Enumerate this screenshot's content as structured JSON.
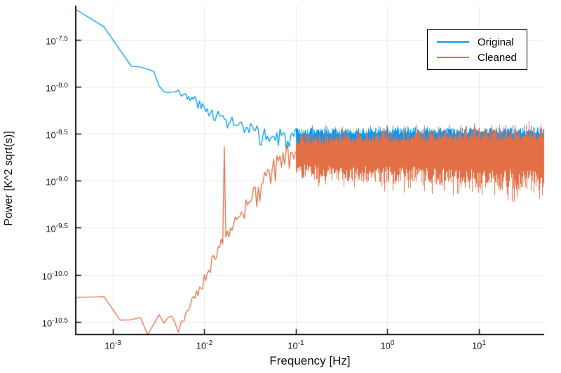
{
  "chart_data": {
    "type": "line",
    "title": "",
    "xlabel": "Frequency [Hz]",
    "ylabel": "Power [K^2 sqrt(s)]",
    "x_scale": "log10",
    "y_scale": "log10",
    "xlim_log10": [
      -3.406,
      1.713
    ],
    "ylim_log10": [
      -10.637,
      -7.135
    ],
    "grid": true,
    "x_ticks": [
      {
        "log10": -3,
        "base": "10",
        "exp": "-3"
      },
      {
        "log10": -2,
        "base": "10",
        "exp": "-2"
      },
      {
        "log10": -1,
        "base": "10",
        "exp": "-1"
      },
      {
        "log10": 0,
        "base": "10",
        "exp": "0"
      },
      {
        "log10": 1,
        "base": "10",
        "exp": "1"
      }
    ],
    "y_ticks": [
      {
        "log10": -7.5,
        "base": "10",
        "exp": "-7.5"
      },
      {
        "log10": -8.0,
        "base": "10",
        "exp": "-8.0"
      },
      {
        "log10": -8.5,
        "base": "10",
        "exp": "-8.5"
      },
      {
        "log10": -9.0,
        "base": "10",
        "exp": "-9.0"
      },
      {
        "log10": -9.5,
        "base": "10",
        "exp": "-9.5"
      },
      {
        "log10": -10.0,
        "base": "10",
        "exp": "-10.0"
      },
      {
        "log10": -10.5,
        "base": "10",
        "exp": "-10.5"
      }
    ],
    "colors": {
      "grid": "rgba(0,0,0,0.08)",
      "axis": "#111111",
      "tick_text": "#1a1a1a",
      "legend_border": "#000000",
      "background": "#ffffff"
    },
    "sampling": {
      "f_start": 0.0004,
      "f_step": 0.0004,
      "linear_until": 0.006,
      "poly_step": 0.0169,
      "poly_until_log10": -1.0
    },
    "legend": {
      "position": "top-right",
      "entries": [
        "Original",
        "Cleaned"
      ]
    },
    "series": [
      {
        "name": "Original",
        "color": "#009AF9",
        "seed": 3,
        "trend": [
          [
            -3.4,
            -7.18
          ],
          [
            -3.1,
            -7.35
          ],
          [
            -2.9,
            -7.64
          ],
          [
            -2.85,
            -7.75
          ],
          [
            -2.7,
            -7.8
          ],
          [
            -2.56,
            -7.82
          ],
          [
            -2.48,
            -8.0
          ],
          [
            -2.4,
            -8.07
          ],
          [
            -2.33,
            -8.0
          ],
          [
            -2.25,
            -8.1
          ],
          [
            -2.1,
            -8.14
          ],
          [
            -2.0,
            -8.25
          ],
          [
            -1.9,
            -8.28
          ],
          [
            -1.8,
            -8.35
          ],
          [
            -1.7,
            -8.38
          ],
          [
            -1.55,
            -8.47
          ],
          [
            -1.4,
            -8.52
          ],
          [
            -1.2,
            -8.55
          ],
          [
            -1.0,
            -8.56
          ],
          [
            1.72,
            -8.56
          ]
        ],
        "noise": [
          [
            -3.4,
            0.004
          ],
          [
            -2.9,
            0.01
          ],
          [
            -2.55,
            0.03
          ],
          [
            -2.3,
            0.05
          ],
          [
            -2.0,
            0.06
          ],
          [
            -1.7,
            0.09
          ],
          [
            -1.35,
            0.11
          ],
          [
            -1.0,
            0.12
          ]
        ],
        "env_hi": [
          [
            -1.0,
            0.12
          ],
          [
            1.72,
            0.13
          ]
        ],
        "env_lo": [
          [
            -1.0,
            0.14
          ],
          [
            1.72,
            0.16
          ]
        ]
      },
      {
        "name": "Cleaned",
        "color": "#E36F47",
        "seed": 9,
        "trend": [
          [
            -3.4,
            -10.24
          ],
          [
            -3.1,
            -10.24
          ],
          [
            -2.92,
            -10.47
          ],
          [
            -2.85,
            -10.55
          ],
          [
            -2.72,
            -10.42
          ],
          [
            -2.62,
            -10.65
          ],
          [
            -2.52,
            -10.44
          ],
          [
            -2.44,
            -10.49
          ],
          [
            -2.36,
            -10.45
          ],
          [
            -2.28,
            -10.6
          ],
          [
            -2.18,
            -10.38
          ],
          [
            -2.05,
            -10.15
          ],
          [
            -1.95,
            -9.95
          ],
          [
            -1.85,
            -9.7
          ],
          [
            -1.75,
            -9.55
          ],
          [
            -1.62,
            -9.4
          ],
          [
            -1.48,
            -9.22
          ],
          [
            -1.35,
            -9.05
          ],
          [
            -1.22,
            -8.88
          ],
          [
            -1.1,
            -8.74
          ],
          [
            -1.0,
            -8.7
          ],
          [
            1.72,
            -8.68
          ]
        ],
        "noise": [
          [
            -3.4,
            0.006
          ],
          [
            -2.9,
            0.02
          ],
          [
            -2.4,
            0.04
          ],
          [
            -2.1,
            0.06
          ],
          [
            -1.85,
            0.09
          ],
          [
            -1.55,
            0.12
          ],
          [
            -1.25,
            0.15
          ],
          [
            -1.0,
            0.17
          ]
        ],
        "env_hi": [
          [
            -1.0,
            0.2
          ],
          [
            0.0,
            0.23
          ],
          [
            1.72,
            0.26
          ]
        ],
        "env_lo": [
          [
            -1.0,
            0.28
          ],
          [
            0.3,
            0.36
          ],
          [
            1.72,
            0.46
          ]
        ],
        "spike": {
          "log10f": -1.78,
          "log10P": -8.64
        }
      }
    ]
  }
}
